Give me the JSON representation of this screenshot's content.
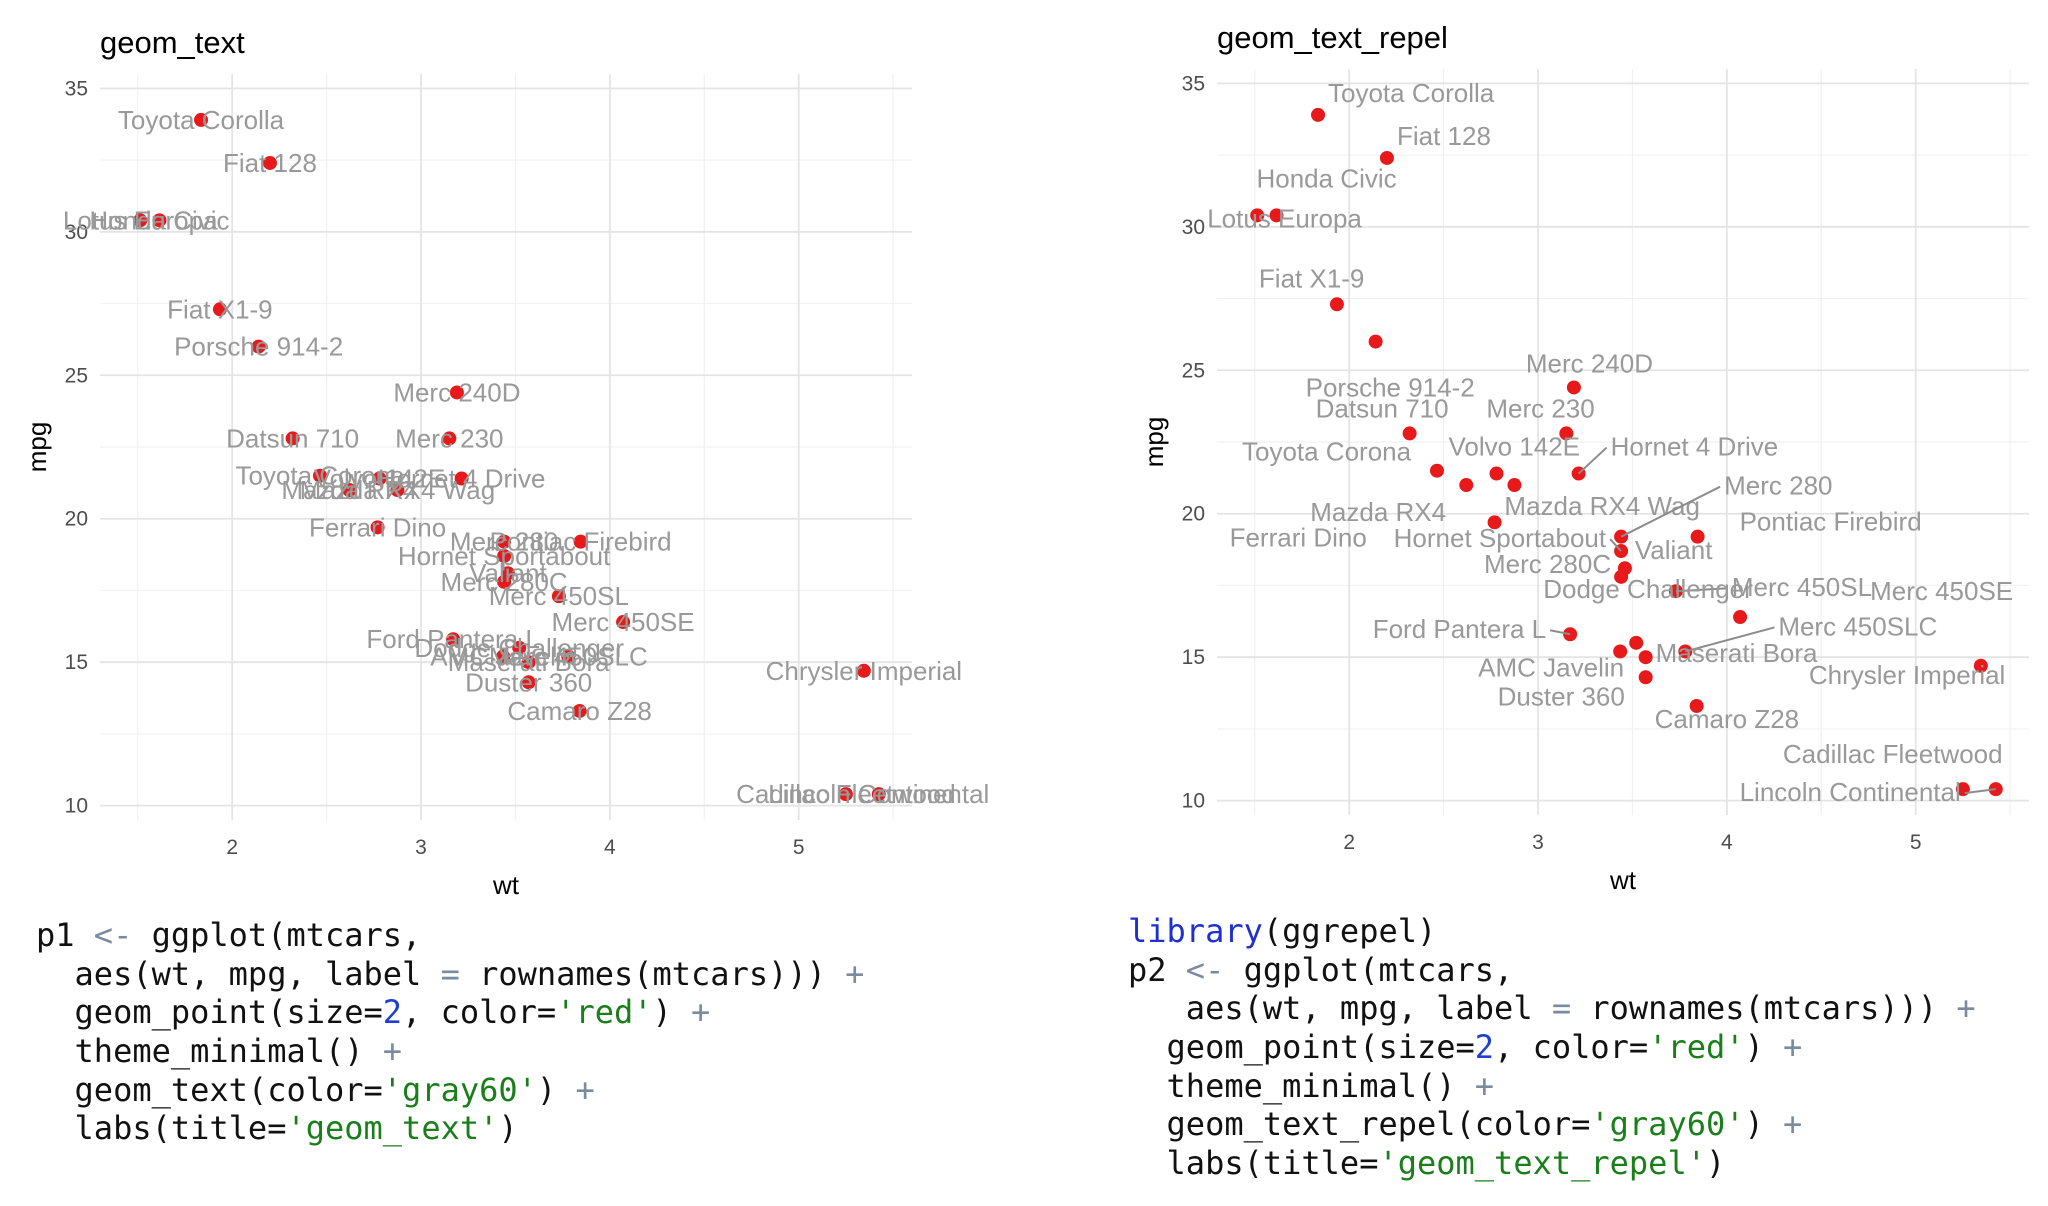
{
  "chart_data": [
    {
      "type": "scatter",
      "title": "geom_text",
      "xlabel": "wt",
      "ylabel": "mpg",
      "xlim": [
        1.3,
        5.6
      ],
      "ylim": [
        9.5,
        35.5
      ],
      "xticks": [
        2,
        3,
        4,
        5
      ],
      "yticks": [
        10,
        15,
        20,
        25,
        30,
        35
      ],
      "grid": true,
      "point_color": "#e8191a",
      "label_color": "#999999",
      "points": [
        {
          "label": "Toyota Corolla",
          "x": 1.835,
          "y": 33.9
        },
        {
          "label": "Fiat 128",
          "x": 2.2,
          "y": 32.4
        },
        {
          "label": "Honda Civic",
          "x": 1.615,
          "y": 30.4
        },
        {
          "label": "Lotus Europa",
          "x": 1.513,
          "y": 30.4
        },
        {
          "label": "Fiat X1-9",
          "x": 1.935,
          "y": 27.3
        },
        {
          "label": "Porsche 914-2",
          "x": 2.14,
          "y": 26.0
        },
        {
          "label": "Merc 240D",
          "x": 3.19,
          "y": 24.4
        },
        {
          "label": "Datsun 710",
          "x": 2.32,
          "y": 22.8
        },
        {
          "label": "Merc 230",
          "x": 3.15,
          "y": 22.8
        },
        {
          "label": "Toyota Corona",
          "x": 2.465,
          "y": 21.5
        },
        {
          "label": "Volvo 142E",
          "x": 2.78,
          "y": 21.4
        },
        {
          "label": "Hornet 4 Drive",
          "x": 3.215,
          "y": 21.4
        },
        {
          "label": "Mazda RX4",
          "x": 2.62,
          "y": 21.0
        },
        {
          "label": "Mazda RX4 Wag",
          "x": 2.875,
          "y": 21.0
        },
        {
          "label": "Ferrari Dino",
          "x": 2.77,
          "y": 19.7
        },
        {
          "label": "Merc 280",
          "x": 3.44,
          "y": 19.2
        },
        {
          "label": "Pontiac Firebird",
          "x": 3.845,
          "y": 19.2
        },
        {
          "label": "Hornet Sportabout",
          "x": 3.44,
          "y": 18.7
        },
        {
          "label": "Valiant",
          "x": 3.46,
          "y": 18.1
        },
        {
          "label": "Merc 280C",
          "x": 3.44,
          "y": 17.8
        },
        {
          "label": "Merc 450SL",
          "x": 3.73,
          "y": 17.3
        },
        {
          "label": "Merc 450SE",
          "x": 4.07,
          "y": 16.4
        },
        {
          "label": "Ford Pantera L",
          "x": 3.17,
          "y": 15.8
        },
        {
          "label": "Dodge Challenger",
          "x": 3.52,
          "y": 15.5
        },
        {
          "label": "Merc 450SLC",
          "x": 3.78,
          "y": 15.2
        },
        {
          "label": "AMC Javelin",
          "x": 3.435,
          "y": 15.2
        },
        {
          "label": "Maserati Bora",
          "x": 3.57,
          "y": 15.0
        },
        {
          "label": "Chrysler Imperial",
          "x": 5.345,
          "y": 14.7
        },
        {
          "label": "Duster 360",
          "x": 3.57,
          "y": 14.3
        },
        {
          "label": "Camaro Z28",
          "x": 3.84,
          "y": 13.3
        },
        {
          "label": "Cadillac Fleetwood",
          "x": 5.25,
          "y": 10.4
        },
        {
          "label": "Lincoln Continental",
          "x": 5.424,
          "y": 10.4
        }
      ]
    },
    {
      "type": "scatter",
      "title": "geom_text_repel",
      "xlabel": "wt",
      "ylabel": "mpg",
      "xlim": [
        1.3,
        5.6
      ],
      "ylim": [
        9.5,
        35.5
      ],
      "xticks": [
        2,
        3,
        4,
        5
      ],
      "yticks": [
        10,
        15,
        20,
        25,
        30,
        35
      ],
      "grid": true,
      "point_color": "#e8191a",
      "label_color": "#999999",
      "points": [
        {
          "label": "Toyota Corolla",
          "x": 1.835,
          "y": 33.9
        },
        {
          "label": "Fiat 128",
          "x": 2.2,
          "y": 32.4
        },
        {
          "label": "Honda Civic",
          "x": 1.615,
          "y": 30.4
        },
        {
          "label": "Lotus Europa",
          "x": 1.513,
          "y": 30.4
        },
        {
          "label": "Fiat X1-9",
          "x": 1.935,
          "y": 27.3
        },
        {
          "label": "Porsche 914-2",
          "x": 2.14,
          "y": 26.0
        },
        {
          "label": "Merc 240D",
          "x": 3.19,
          "y": 24.4
        },
        {
          "label": "Datsun 710",
          "x": 2.32,
          "y": 22.8
        },
        {
          "label": "Merc 230",
          "x": 3.15,
          "y": 22.8
        },
        {
          "label": "Toyota Corona",
          "x": 2.465,
          "y": 21.5
        },
        {
          "label": "Volvo 142E",
          "x": 2.78,
          "y": 21.4
        },
        {
          "label": "Hornet 4 Drive",
          "x": 3.215,
          "y": 21.4
        },
        {
          "label": "Mazda RX4",
          "x": 2.62,
          "y": 21.0
        },
        {
          "label": "Mazda RX4 Wag",
          "x": 2.875,
          "y": 21.0
        },
        {
          "label": "Ferrari Dino",
          "x": 2.77,
          "y": 19.7
        },
        {
          "label": "Merc 280",
          "x": 3.44,
          "y": 19.2
        },
        {
          "label": "Pontiac Firebird",
          "x": 3.845,
          "y": 19.2
        },
        {
          "label": "Hornet Sportabout",
          "x": 3.44,
          "y": 18.7
        },
        {
          "label": "Valiant",
          "x": 3.46,
          "y": 18.1
        },
        {
          "label": "Merc 280C",
          "x": 3.44,
          "y": 17.8
        },
        {
          "label": "Merc 450SL",
          "x": 3.73,
          "y": 17.3
        },
        {
          "label": "Merc 450SE",
          "x": 4.07,
          "y": 16.4
        },
        {
          "label": "Ford Pantera L",
          "x": 3.17,
          "y": 15.8
        },
        {
          "label": "Dodge Challenger",
          "x": 3.52,
          "y": 15.5
        },
        {
          "label": "Merc 450SLC",
          "x": 3.78,
          "y": 15.2
        },
        {
          "label": "AMC Javelin",
          "x": 3.435,
          "y": 15.2
        },
        {
          "label": "Maserati Bora",
          "x": 3.57,
          "y": 15.0
        },
        {
          "label": "Chrysler Imperial",
          "x": 5.345,
          "y": 14.7
        },
        {
          "label": "Duster 360",
          "x": 3.57,
          "y": 14.3
        },
        {
          "label": "Camaro Z28",
          "x": 3.84,
          "y": 13.3
        },
        {
          "label": "Cadillac Fleetwood",
          "x": 5.25,
          "y": 10.4
        },
        {
          "label": "Lincoln Continental",
          "x": 5.424,
          "y": 10.4
        }
      ]
    }
  ],
  "code_left": [
    [
      {
        "t": "p1 "
      },
      {
        "t": "<-",
        "c": "op"
      },
      {
        "t": " ggplot(mtcars,"
      }
    ],
    [
      {
        "t": "  aes(wt, mpg, label "
      },
      {
        "t": "=",
        "c": "op"
      },
      {
        "t": " rownames(mtcars))) "
      },
      {
        "t": "+",
        "c": "op"
      }
    ],
    [
      {
        "t": "  geom_point(size="
      },
      {
        "t": "2",
        "c": "num"
      },
      {
        "t": ", color="
      },
      {
        "t": "'red'",
        "c": "str"
      },
      {
        "t": ") "
      },
      {
        "t": "+",
        "c": "op"
      }
    ],
    [
      {
        "t": "  theme_minimal() "
      },
      {
        "t": "+",
        "c": "op"
      }
    ],
    [
      {
        "t": "  geom_text(color="
      },
      {
        "t": "'gray60'",
        "c": "str"
      },
      {
        "t": ") "
      },
      {
        "t": "+",
        "c": "op"
      }
    ],
    [
      {
        "t": "  labs(title="
      },
      {
        "t": "'geom_text'",
        "c": "str"
      },
      {
        "t": ")"
      }
    ]
  ],
  "code_right": [
    [
      {
        "t": "library",
        "c": "kw"
      },
      {
        "t": "(ggrepel)"
      }
    ],
    [
      {
        "t": "p2 "
      },
      {
        "t": "<-",
        "c": "op"
      },
      {
        "t": " ggplot(mtcars,"
      }
    ],
    [
      {
        "t": "   aes(wt, mpg, label "
      },
      {
        "t": "=",
        "c": "op"
      },
      {
        "t": " rownames(mtcars))) "
      },
      {
        "t": "+",
        "c": "op"
      }
    ],
    [
      {
        "t": "  geom_point(size="
      },
      {
        "t": "2",
        "c": "num"
      },
      {
        "t": ", color="
      },
      {
        "t": "'red'",
        "c": "str"
      },
      {
        "t": ") "
      },
      {
        "t": "+",
        "c": "op"
      }
    ],
    [
      {
        "t": "  theme_minimal() "
      },
      {
        "t": "+",
        "c": "op"
      }
    ],
    [
      {
        "t": "  geom_text_repel(color="
      },
      {
        "t": "'gray60'",
        "c": "str"
      },
      {
        "t": ") "
      },
      {
        "t": "+",
        "c": "op"
      }
    ],
    [
      {
        "t": "  labs(title="
      },
      {
        "t": "'geom_text_repel'",
        "c": "str"
      },
      {
        "t": ")"
      }
    ]
  ]
}
